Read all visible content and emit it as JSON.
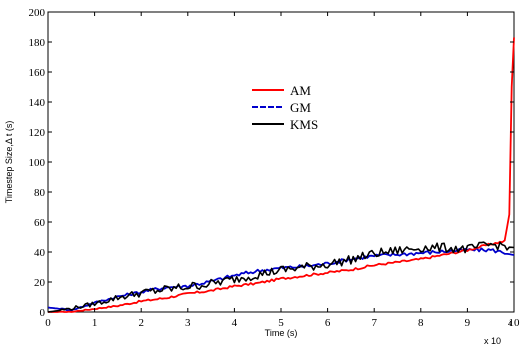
{
  "chart_data": {
    "type": "line",
    "xlabel": "Time (s)",
    "ylabel": "Timestep Size,Δ t (s)",
    "x_exponent_label": "x 10",
    "x_exponent_power": "4",
    "xlim": [
      0,
      100000
    ],
    "ylim": [
      0,
      200
    ],
    "x_ticks": [
      0,
      10000,
      20000,
      30000,
      40000,
      50000,
      60000,
      70000,
      80000,
      90000,
      100000
    ],
    "x_tick_labels": [
      "0",
      "1",
      "2",
      "3",
      "4",
      "5",
      "6",
      "7",
      "8",
      "9",
      "10"
    ],
    "y_ticks": [
      0,
      20,
      40,
      60,
      80,
      100,
      120,
      140,
      160,
      180,
      200
    ],
    "y_tick_labels": [
      "0",
      "20",
      "40",
      "60",
      "80",
      "100",
      "120",
      "140",
      "160",
      "180",
      "200"
    ],
    "grid": false,
    "legend_position": "center-left",
    "series": [
      {
        "name": "AM",
        "color": "#ff0000",
        "x": [
          0,
          5000,
          10000,
          15000,
          20000,
          25000,
          30000,
          35000,
          40000,
          45000,
          50000,
          55000,
          60000,
          65000,
          70000,
          75000,
          80000,
          85000,
          90000,
          95000,
          98000,
          99000,
          99500,
          100000
        ],
        "y": [
          0,
          0,
          2,
          4,
          7,
          9,
          12,
          14,
          17,
          19,
          22,
          24,
          26,
          28,
          31,
          33,
          35,
          38,
          41,
          45,
          47,
          65,
          150,
          183
        ]
      },
      {
        "name": "GM",
        "color": "#0000cc",
        "x": [
          0,
          3000,
          5000,
          10000,
          15000,
          20000,
          25000,
          30000,
          35000,
          40000,
          45000,
          50000,
          55000,
          60000,
          65000,
          70000,
          75000,
          80000,
          85000,
          90000,
          95000,
          100000
        ],
        "y": [
          3,
          2,
          1,
          6,
          10,
          13,
          16,
          17,
          20,
          24,
          27,
          29,
          30,
          32,
          35,
          37,
          38,
          39,
          40,
          41,
          41,
          38
        ]
      },
      {
        "name": "KMS",
        "color": "#000000",
        "x": [
          0,
          5000,
          10000,
          15000,
          20000,
          25000,
          30000,
          35000,
          40000,
          45000,
          50000,
          55000,
          60000,
          65000,
          70000,
          75000,
          80000,
          85000,
          90000,
          95000,
          100000
        ],
        "y": [
          0,
          2,
          5,
          9,
          12,
          14,
          16,
          18,
          21,
          24,
          27,
          29,
          31,
          34,
          38,
          40,
          42,
          42,
          41,
          44,
          43
        ]
      }
    ]
  }
}
